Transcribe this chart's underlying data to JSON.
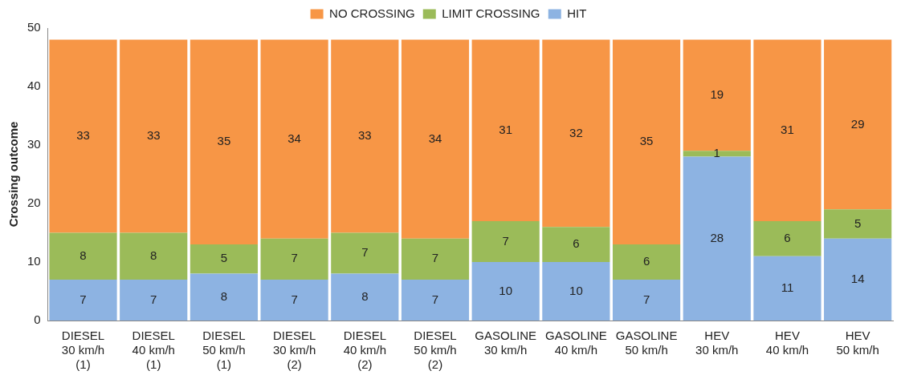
{
  "chart_data": {
    "type": "bar",
    "stacked": true,
    "ylabel": "Crossing outcome",
    "categories": [
      "DIESEL\n30 km/h\n(1)",
      "DIESEL\n40 km/h\n(1)",
      "DIESEL\n50 km/h\n(1)",
      "DIESEL\n30 km/h\n(2)",
      "DIESEL\n40 km/h\n(2)",
      "DIESEL\n50 km/h\n(2)",
      "GASOLINE\n30 km/h",
      "GASOLINE\n40 km/h",
      "GASOLINE\n50 km/h",
      "HEV\n30 km/h",
      "HEV\n40 km/h",
      "HEV\n50 km/h"
    ],
    "series": [
      {
        "name": "HIT",
        "color": "#8db3e2",
        "values": [
          7,
          7,
          8,
          7,
          8,
          7,
          10,
          10,
          7,
          28,
          11,
          14
        ]
      },
      {
        "name": "LIMIT CROSSING",
        "color": "#9bbb59",
        "values": [
          8,
          8,
          5,
          7,
          7,
          7,
          7,
          6,
          6,
          1,
          6,
          5
        ]
      },
      {
        "name": "NO CROSSING",
        "color": "#f79646",
        "values": [
          33,
          33,
          35,
          34,
          33,
          34,
          31,
          32,
          35,
          19,
          31,
          29
        ]
      }
    ],
    "ylim": [
      0,
      50
    ],
    "yticks": [
      0,
      10,
      20,
      30,
      40,
      50
    ],
    "grid": false,
    "legend": "top",
    "data_labels": true
  }
}
